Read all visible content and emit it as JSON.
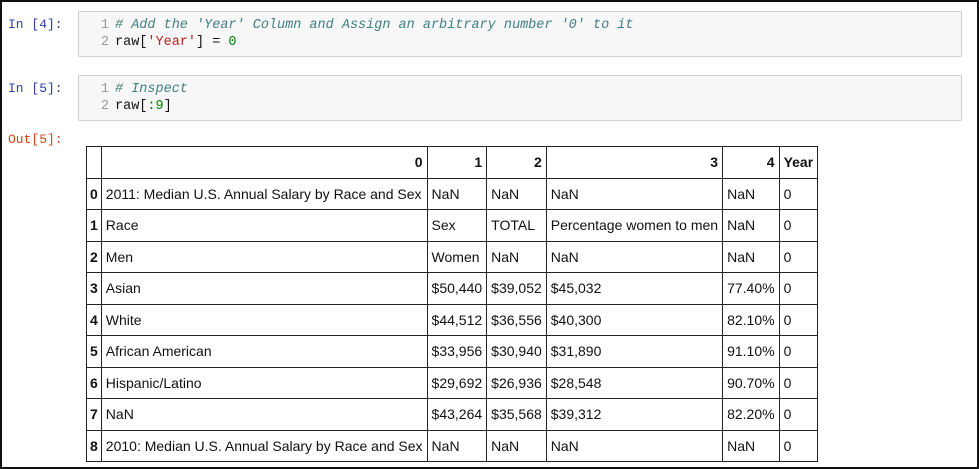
{
  "cells": [
    {
      "prompt": "In [4]:",
      "lines": [
        {
          "number": "1",
          "tokens": [
            {
              "text": "# Add the 'Year' Column and Assign an arbitrary number '0' to it",
              "kind": "c"
            }
          ]
        },
        {
          "number": "2",
          "tokens": [
            {
              "text": "raw[",
              "kind": "p"
            },
            {
              "text": "'Year'",
              "kind": "s"
            },
            {
              "text": "] = ",
              "kind": "p"
            },
            {
              "text": "0",
              "kind": "n"
            }
          ]
        }
      ]
    },
    {
      "prompt": "In [5]:",
      "lines": [
        {
          "number": "1",
          "tokens": [
            {
              "text": "# Inspect",
              "kind": "c"
            }
          ]
        },
        {
          "number": "2",
          "tokens": [
            {
              "text": "raw[",
              "kind": "p"
            },
            {
              "text": ":9",
              "kind": "n"
            },
            {
              "text": "]",
              "kind": "p"
            }
          ]
        }
      ]
    }
  ],
  "output": {
    "prompt": "Out[5]:",
    "table": {
      "columns": [
        "0",
        "1",
        "2",
        "3",
        "4",
        "Year"
      ],
      "rows": [
        {
          "index": "0",
          "cells": [
            "2011: Median U.S. Annual Salary by Race and Sex",
            "NaN",
            "NaN",
            "NaN",
            "NaN",
            "0"
          ]
        },
        {
          "index": "1",
          "cells": [
            "Race",
            "Sex",
            "TOTAL",
            "Percentage women to men",
            "NaN",
            "0"
          ]
        },
        {
          "index": "2",
          "cells": [
            "Men",
            "Women",
            "NaN",
            "NaN",
            "NaN",
            "0"
          ]
        },
        {
          "index": "3",
          "cells": [
            "Asian",
            "$50,440",
            "$39,052",
            "$45,032",
            "77.40%",
            "0"
          ]
        },
        {
          "index": "4",
          "cells": [
            "White",
            "$44,512",
            "$36,556",
            "$40,300",
            "82.10%",
            "0"
          ]
        },
        {
          "index": "5",
          "cells": [
            "African American",
            "$33,956",
            "$30,940",
            "$31,890",
            "91.10%",
            "0"
          ]
        },
        {
          "index": "6",
          "cells": [
            "Hispanic/Latino",
            "$29,692",
            "$26,936",
            "$28,548",
            "90.70%",
            "0"
          ]
        },
        {
          "index": "7",
          "cells": [
            "NaN",
            "$43,264",
            "$35,568",
            "$39,312",
            "82.20%",
            "0"
          ]
        },
        {
          "index": "8",
          "cells": [
            "2010: Median U.S. Annual Salary by Race and Sex",
            "NaN",
            "NaN",
            "NaN",
            "NaN",
            "0"
          ]
        }
      ]
    }
  }
}
